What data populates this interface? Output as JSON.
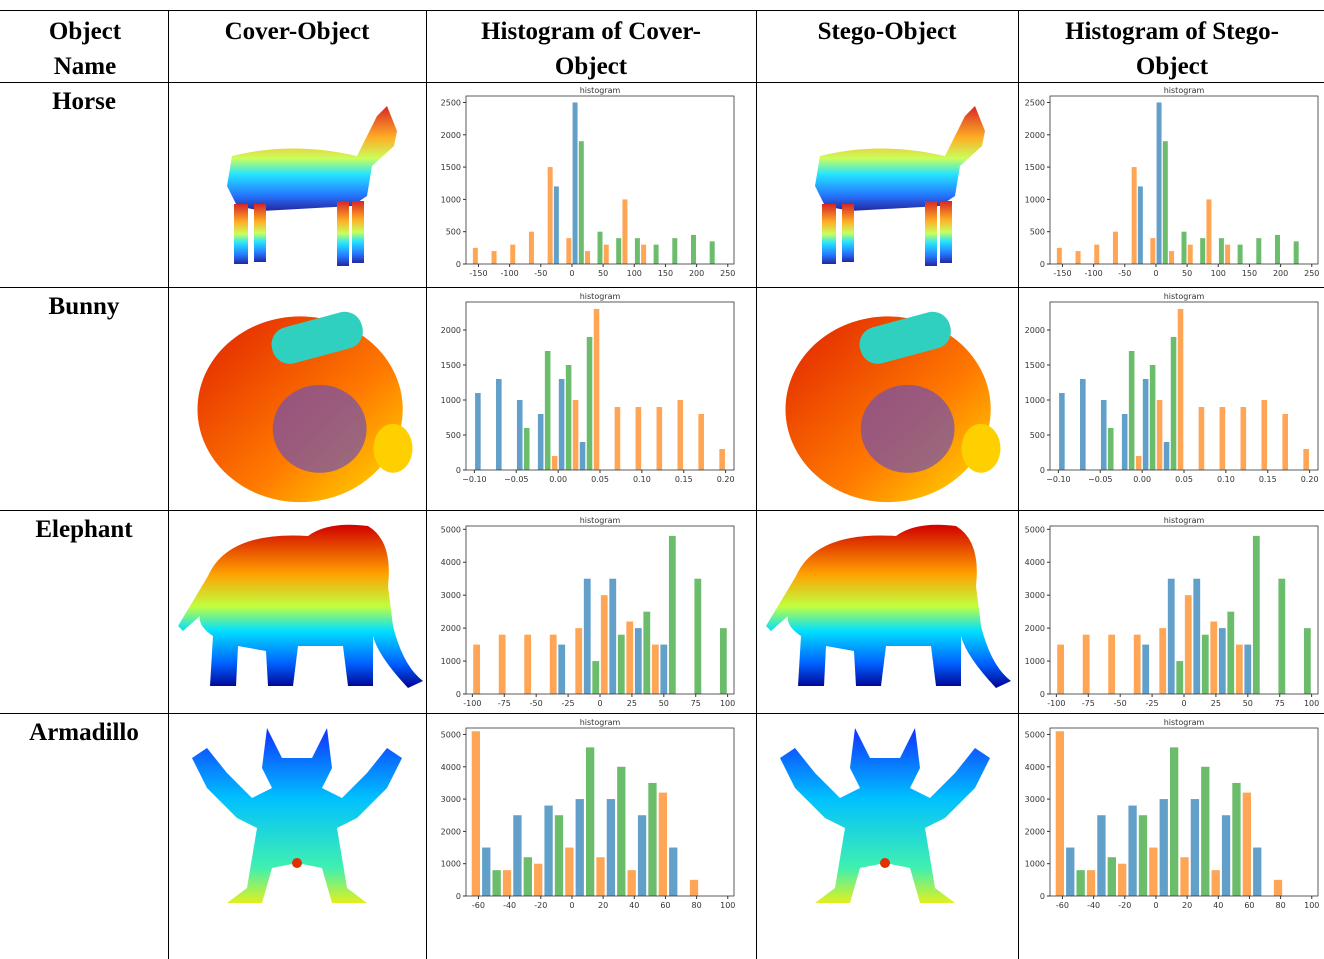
{
  "table": {
    "headers": [
      "Object Name",
      "Cover-Object",
      "Histogram of Cover-Object",
      "Stego-Object",
      "Histogram of Stego-Object"
    ],
    "rows": [
      {
        "name": "Horse",
        "cover_hist": {
          "type": "histogram",
          "title": "histogram",
          "xlim": [
            -170,
            260
          ],
          "ylim": [
            0,
            2600
          ],
          "xticks": [
            -150,
            -100,
            -50,
            0,
            50,
            100,
            150,
            200,
            250
          ],
          "yticks": [
            0,
            500,
            1000,
            1500,
            2000,
            2500
          ],
          "bins": [
            -160,
            -130,
            -100,
            -70,
            -40,
            -10,
            20,
            50,
            80,
            110,
            140,
            170,
            200,
            230
          ],
          "series": [
            {
              "color": "#ff7f0e",
              "values": [
                250,
                200,
                300,
                500,
                1500,
                400,
                200,
                300,
                1000,
                300,
                0,
                0,
                0
              ]
            },
            {
              "color": "#1f77b4",
              "values": [
                0,
                0,
                0,
                0,
                1200,
                2500,
                0,
                0,
                0,
                0,
                0,
                0,
                0
              ]
            },
            {
              "color": "#2ca02c",
              "values": [
                0,
                0,
                0,
                0,
                0,
                1900,
                500,
                400,
                400,
                300,
                400,
                450,
                350
              ]
            }
          ]
        },
        "stego_hist": {
          "type": "histogram",
          "title": "histogram",
          "xlim": [
            -170,
            260
          ],
          "ylim": [
            0,
            2600
          ],
          "xticks": [
            -150,
            -100,
            -50,
            0,
            50,
            100,
            150,
            200,
            250
          ],
          "yticks": [
            0,
            500,
            1000,
            1500,
            2000,
            2500
          ],
          "bins": [
            -160,
            -130,
            -100,
            -70,
            -40,
            -10,
            20,
            50,
            80,
            110,
            140,
            170,
            200,
            230
          ],
          "series": [
            {
              "color": "#ff7f0e",
              "values": [
                250,
                200,
                300,
                500,
                1500,
                400,
                200,
                300,
                1000,
                300,
                0,
                0,
                0
              ]
            },
            {
              "color": "#1f77b4",
              "values": [
                0,
                0,
                0,
                0,
                1200,
                2500,
                0,
                0,
                0,
                0,
                0,
                0,
                0
              ]
            },
            {
              "color": "#2ca02c",
              "values": [
                0,
                0,
                0,
                0,
                0,
                1900,
                500,
                400,
                400,
                300,
                400,
                450,
                350
              ]
            }
          ]
        }
      },
      {
        "name": "Bunny",
        "cover_hist": {
          "type": "histogram",
          "title": "histogram",
          "xlim": [
            -0.11,
            0.21
          ],
          "ylim": [
            0,
            2400
          ],
          "xticks": [
            {
              "value": -0.1,
              "label": "−0.10"
            },
            {
              "value": -0.05,
              "label": "−0.05"
            },
            {
              "value": 0,
              "label": "0.00"
            },
            {
              "value": 0.05,
              "label": "0.05"
            },
            {
              "value": 0.1,
              "label": "0.10"
            },
            {
              "value": 0.15,
              "label": "0.15"
            },
            {
              "value": 0.2,
              "label": "0.20"
            }
          ],
          "yticks": [
            0,
            500,
            1000,
            1500,
            2000
          ],
          "bins": [
            -0.1,
            -0.075,
            -0.05,
            -0.025,
            0,
            0.025,
            0.05,
            0.075,
            0.1,
            0.125,
            0.15,
            0.175,
            0.2
          ],
          "series": [
            {
              "color": "#1f77b4",
              "values": [
                1100,
                1300,
                1000,
                800,
                1300,
                400,
                0,
                0,
                0,
                0,
                0,
                0
              ]
            },
            {
              "color": "#2ca02c",
              "values": [
                0,
                0,
                600,
                1700,
                1500,
                1900,
                0,
                0,
                0,
                0,
                0,
                0
              ]
            },
            {
              "color": "#ff7f0e",
              "values": [
                0,
                0,
                0,
                200,
                1000,
                2300,
                900,
                900,
                900,
                1000,
                800,
                300
              ]
            }
          ]
        },
        "stego_hist": {
          "type": "histogram",
          "title": "histogram",
          "xlim": [
            -0.11,
            0.21
          ],
          "ylim": [
            0,
            2400
          ],
          "xticks": [
            {
              "value": -0.1,
              "label": "−0.10"
            },
            {
              "value": -0.05,
              "label": "−0.05"
            },
            {
              "value": 0,
              "label": "0.00"
            },
            {
              "value": 0.05,
              "label": "0.05"
            },
            {
              "value": 0.1,
              "label": "0.10"
            },
            {
              "value": 0.15,
              "label": "0.15"
            },
            {
              "value": 0.2,
              "label": "0.20"
            }
          ],
          "yticks": [
            0,
            500,
            1000,
            1500,
            2000
          ],
          "bins": [
            -0.1,
            -0.075,
            -0.05,
            -0.025,
            0,
            0.025,
            0.05,
            0.075,
            0.1,
            0.125,
            0.15,
            0.175,
            0.2
          ],
          "series": [
            {
              "color": "#1f77b4",
              "values": [
                1100,
                1300,
                1000,
                800,
                1300,
                400,
                0,
                0,
                0,
                0,
                0,
                0
              ]
            },
            {
              "color": "#2ca02c",
              "values": [
                0,
                0,
                600,
                1700,
                1500,
                1900,
                0,
                0,
                0,
                0,
                0,
                0
              ]
            },
            {
              "color": "#ff7f0e",
              "values": [
                0,
                0,
                0,
                200,
                1000,
                2300,
                900,
                900,
                900,
                1000,
                800,
                300
              ]
            }
          ]
        }
      },
      {
        "name": "Elephant",
        "cover_hist": {
          "type": "histogram",
          "title": "histogram",
          "xlim": [
            -105,
            105
          ],
          "ylim": [
            0,
            5100
          ],
          "xticks": [
            -100,
            -75,
            -50,
            -25,
            0,
            25,
            50,
            75,
            100
          ],
          "yticks": [
            0,
            1000,
            2000,
            3000,
            4000,
            5000
          ],
          "bins": [
            -100,
            -80,
            -60,
            -40,
            -20,
            0,
            20,
            40,
            60,
            80,
            100
          ],
          "series": [
            {
              "color": "#ff7f0e",
              "values": [
                1500,
                1800,
                1800,
                1800,
                2000,
                3000,
                2200,
                1500,
                0,
                0
              ]
            },
            {
              "color": "#1f77b4",
              "values": [
                0,
                0,
                0,
                1500,
                3500,
                3500,
                2000,
                1500,
                0,
                0
              ]
            },
            {
              "color": "#2ca02c",
              "values": [
                0,
                0,
                0,
                0,
                1000,
                1800,
                2500,
                4800,
                3500,
                2000
              ]
            }
          ]
        },
        "stego_hist": {
          "type": "histogram",
          "title": "histogram",
          "xlim": [
            -105,
            105
          ],
          "ylim": [
            0,
            5100
          ],
          "xticks": [
            -100,
            -75,
            -50,
            -25,
            0,
            25,
            50,
            75,
            100
          ],
          "yticks": [
            0,
            1000,
            2000,
            3000,
            4000,
            5000
          ],
          "bins": [
            -100,
            -80,
            -60,
            -40,
            -20,
            0,
            20,
            40,
            60,
            80,
            100
          ],
          "series": [
            {
              "color": "#ff7f0e",
              "values": [
                1500,
                1800,
                1800,
                1800,
                2000,
                3000,
                2200,
                1500,
                0,
                0
              ]
            },
            {
              "color": "#1f77b4",
              "values": [
                0,
                0,
                0,
                1500,
                3500,
                3500,
                2000,
                1500,
                0,
                0
              ]
            },
            {
              "color": "#2ca02c",
              "values": [
                0,
                0,
                0,
                0,
                1000,
                1800,
                2500,
                4800,
                3500,
                2000
              ]
            }
          ]
        }
      },
      {
        "name": "Armadillo",
        "cover_hist": {
          "type": "histogram",
          "title": "histogram",
          "xlim": [
            -68,
            104
          ],
          "ylim": [
            0,
            5200
          ],
          "xticks": [
            -60,
            -40,
            -20,
            0,
            20,
            40,
            60,
            80,
            100
          ],
          "yticks": [
            0,
            1000,
            2000,
            3000,
            4000,
            5000
          ],
          "bins": [
            -65,
            -45,
            -25,
            -5,
            15,
            35,
            55,
            75,
            95
          ],
          "series": [
            {
              "color": "#ff7f0e",
              "values": [
                5100,
                800,
                1000,
                1500,
                1200,
                800,
                3200,
                500
              ]
            },
            {
              "color": "#1f77b4",
              "values": [
                1500,
                2500,
                2800,
                3000,
                3000,
                2500,
                1500,
                0
              ]
            },
            {
              "color": "#2ca02c",
              "values": [
                800,
                1200,
                2500,
                4600,
                4000,
                3500,
                0,
                0
              ]
            }
          ]
        },
        "stego_hist": {
          "type": "histogram",
          "title": "histogram",
          "xlim": [
            -68,
            104
          ],
          "ylim": [
            0,
            5200
          ],
          "xticks": [
            -60,
            -40,
            -20,
            0,
            20,
            40,
            60,
            80,
            100
          ],
          "yticks": [
            0,
            1000,
            2000,
            3000,
            4000,
            5000
          ],
          "bins": [
            -65,
            -45,
            -25,
            -5,
            15,
            35,
            55,
            75,
            95
          ],
          "series": [
            {
              "color": "#ff7f0e",
              "values": [
                5100,
                800,
                1000,
                1500,
                1200,
                800,
                3200,
                500
              ]
            },
            {
              "color": "#1f77b4",
              "values": [
                1500,
                2500,
                2800,
                3000,
                3000,
                2500,
                1500,
                0
              ]
            },
            {
              "color": "#2ca02c",
              "values": [
                800,
                1200,
                2500,
                4600,
                4000,
                3500,
                0,
                0
              ]
            }
          ]
        }
      }
    ]
  }
}
